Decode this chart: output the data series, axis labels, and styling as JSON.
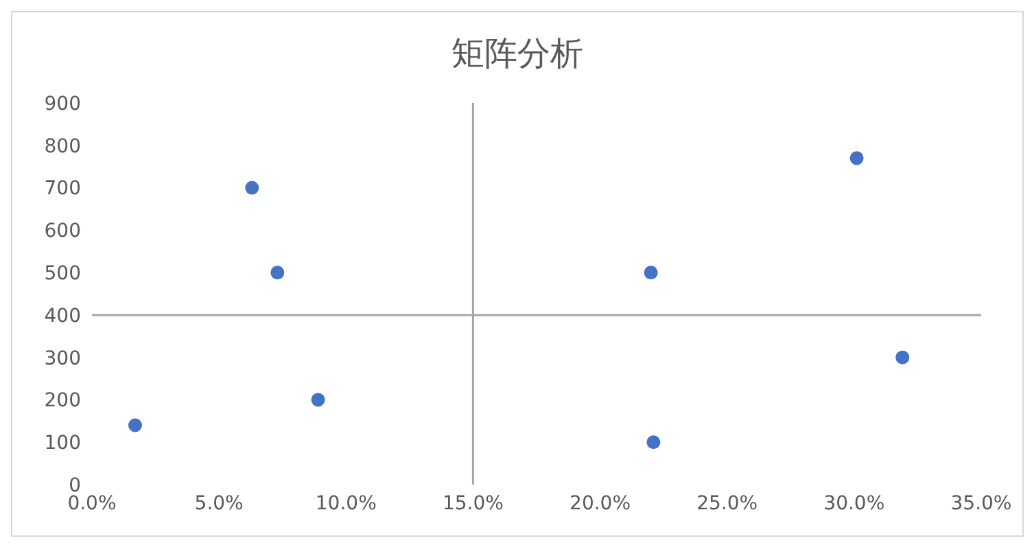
{
  "chart_data": {
    "type": "scatter",
    "title": "矩阵分析",
    "x": [
      1.7,
      6.3,
      7.3,
      8.9,
      22.0,
      22.1,
      30.1,
      31.9
    ],
    "values": [
      140,
      700,
      500,
      200,
      500,
      100,
      770,
      300
    ],
    "color": "#4472c4",
    "marker": "circle",
    "grid": false,
    "legend": false,
    "xlim": [
      0,
      35
    ],
    "xticks": [
      {
        "value": 0,
        "label": "0.0%"
      },
      {
        "value": 5,
        "label": "5.0%"
      },
      {
        "value": 10,
        "label": "10.0%"
      },
      {
        "value": 15,
        "label": "15.0%"
      },
      {
        "value": 20,
        "label": "20.0%"
      },
      {
        "value": 25,
        "label": "25.0%"
      },
      {
        "value": 30,
        "label": "30.0%"
      },
      {
        "value": 35,
        "label": "35.0%"
      }
    ],
    "ylim": [
      0,
      900
    ],
    "yticks": [
      0,
      100,
      200,
      300,
      400,
      500,
      600,
      700,
      800,
      900
    ],
    "ref_lines": [
      {
        "axis": "x",
        "value": 15,
        "color": "#a6a6a6"
      },
      {
        "axis": "y",
        "value": 400,
        "color": "#a6a6a6"
      }
    ]
  }
}
